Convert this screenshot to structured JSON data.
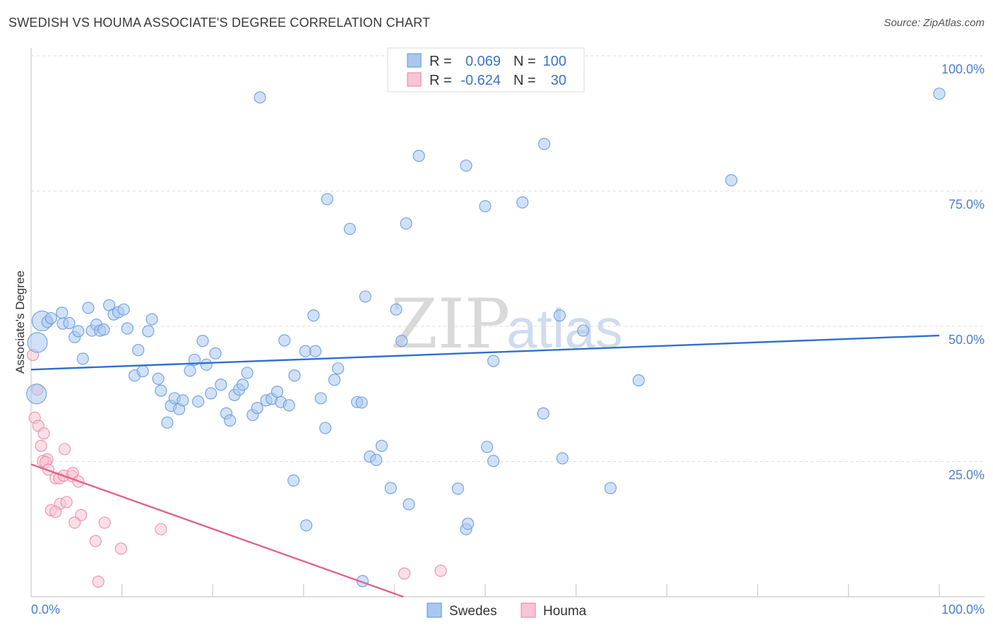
{
  "header": {
    "title": "SWEDISH VS HOUMA ASSOCIATE'S DEGREE CORRELATION CHART",
    "source": "Source: ZipAtlas.com"
  },
  "watermark": {
    "zip": "ZIP",
    "atlas": "atlas"
  },
  "legend": {
    "rows": [
      {
        "r_label": "R =",
        "r_value": "0.069",
        "n_label": "N =",
        "n_value": "100",
        "color": "#a9c8f0"
      },
      {
        "r_label": "R =",
        "r_value": "-0.624",
        "n_label": "N =",
        "n_value": "30",
        "color": "#f6bccd"
      }
    ]
  },
  "bottom_legend": {
    "swedes": "Swedes",
    "houma": "Houma"
  },
  "colors": {
    "swedes_fill": "#a9c8f0",
    "swedes_stroke": "#6f9ee0",
    "swedes_line": "#2f6fd0",
    "houma_fill": "#f8c5d4",
    "houma_stroke": "#ec8fad",
    "houma_line": "#e0628f",
    "grid": "#dddddd",
    "axis_text": "#4a7fd0"
  },
  "chart_data": {
    "type": "scatter",
    "title": "SWEDISH VS HOUMA ASSOCIATE'S DEGREE CORRELATION CHART",
    "xlabel": "",
    "ylabel": "Associate's Degree",
    "xlim": [
      0,
      100
    ],
    "ylim": [
      0,
      100
    ],
    "x_tick_labels": [
      "0.0%",
      "100.0%"
    ],
    "y_ticks": [
      25,
      50,
      75,
      100
    ],
    "y_tick_labels": [
      "25.0%",
      "50.0%",
      "75.0%",
      "100.0%"
    ],
    "series": [
      {
        "name": "Swedes",
        "r": 0.069,
        "n": 100,
        "trend": {
          "x": [
            0,
            100
          ],
          "y": [
            42.0,
            48.3
          ]
        },
        "points": [
          {
            "x": 0.7,
            "y": 47.0,
            "big": 1
          },
          {
            "x": 0.6,
            "y": 37.5,
            "big": 1
          },
          {
            "x": 1.2,
            "y": 51.0,
            "big": 1
          },
          {
            "x": 1.8,
            "y": 50.8
          },
          {
            "x": 2.2,
            "y": 51.5
          },
          {
            "x": 3.4,
            "y": 52.5
          },
          {
            "x": 3.5,
            "y": 50.5
          },
          {
            "x": 4.2,
            "y": 50.6
          },
          {
            "x": 4.8,
            "y": 48.0
          },
          {
            "x": 5.2,
            "y": 49.1
          },
          {
            "x": 5.7,
            "y": 44.0
          },
          {
            "x": 6.3,
            "y": 53.4
          },
          {
            "x": 6.7,
            "y": 49.2
          },
          {
            "x": 7.2,
            "y": 50.3
          },
          {
            "x": 7.6,
            "y": 49.2
          },
          {
            "x": 8.0,
            "y": 49.4
          },
          {
            "x": 8.6,
            "y": 53.9
          },
          {
            "x": 9.1,
            "y": 52.2
          },
          {
            "x": 9.6,
            "y": 52.6
          },
          {
            "x": 10.2,
            "y": 53.1
          },
          {
            "x": 10.6,
            "y": 49.6
          },
          {
            "x": 11.4,
            "y": 40.9
          },
          {
            "x": 11.8,
            "y": 45.6
          },
          {
            "x": 12.3,
            "y": 41.7
          },
          {
            "x": 12.9,
            "y": 49.1
          },
          {
            "x": 13.3,
            "y": 51.3
          },
          {
            "x": 14.0,
            "y": 40.3
          },
          {
            "x": 14.3,
            "y": 38.1
          },
          {
            "x": 15.0,
            "y": 32.2
          },
          {
            "x": 15.4,
            "y": 35.3
          },
          {
            "x": 15.8,
            "y": 36.7
          },
          {
            "x": 16.3,
            "y": 34.7
          },
          {
            "x": 16.7,
            "y": 36.3
          },
          {
            "x": 17.5,
            "y": 41.8
          },
          {
            "x": 18.0,
            "y": 43.8
          },
          {
            "x": 18.4,
            "y": 36.1
          },
          {
            "x": 18.9,
            "y": 47.3
          },
          {
            "x": 19.3,
            "y": 42.9
          },
          {
            "x": 19.8,
            "y": 37.6
          },
          {
            "x": 20.3,
            "y": 45.0
          },
          {
            "x": 20.9,
            "y": 39.2
          },
          {
            "x": 21.5,
            "y": 33.9
          },
          {
            "x": 21.9,
            "y": 32.6
          },
          {
            "x": 22.4,
            "y": 37.3
          },
          {
            "x": 22.9,
            "y": 38.3
          },
          {
            "x": 23.3,
            "y": 39.2
          },
          {
            "x": 23.8,
            "y": 41.4
          },
          {
            "x": 24.4,
            "y": 33.6
          },
          {
            "x": 24.9,
            "y": 34.9
          },
          {
            "x": 25.2,
            "y": 92.3
          },
          {
            "x": 25.9,
            "y": 36.3
          },
          {
            "x": 26.5,
            "y": 36.6
          },
          {
            "x": 27.1,
            "y": 37.9
          },
          {
            "x": 27.5,
            "y": 36.0
          },
          {
            "x": 27.9,
            "y": 47.4
          },
          {
            "x": 28.4,
            "y": 35.4
          },
          {
            "x": 29.0,
            "y": 40.9
          },
          {
            "x": 30.2,
            "y": 45.4
          },
          {
            "x": 31.1,
            "y": 52.0
          },
          {
            "x": 31.3,
            "y": 45.4
          },
          {
            "x": 31.9,
            "y": 36.7
          },
          {
            "x": 32.4,
            "y": 31.2
          },
          {
            "x": 32.6,
            "y": 73.5
          },
          {
            "x": 33.4,
            "y": 40.1
          },
          {
            "x": 33.8,
            "y": 42.2
          },
          {
            "x": 35.1,
            "y": 68.0
          },
          {
            "x": 35.9,
            "y": 36.0
          },
          {
            "x": 36.4,
            "y": 35.9
          },
          {
            "x": 36.8,
            "y": 55.5
          },
          {
            "x": 37.3,
            "y": 25.9
          },
          {
            "x": 38.6,
            "y": 27.9
          },
          {
            "x": 40.2,
            "y": 53.1
          },
          {
            "x": 40.8,
            "y": 47.3
          },
          {
            "x": 41.3,
            "y": 69.0
          },
          {
            "x": 42.7,
            "y": 81.5
          },
          {
            "x": 47.9,
            "y": 79.7
          },
          {
            "x": 50.0,
            "y": 72.2
          },
          {
            "x": 50.9,
            "y": 43.6
          },
          {
            "x": 54.1,
            "y": 72.9
          },
          {
            "x": 56.5,
            "y": 83.7
          },
          {
            "x": 58.2,
            "y": 52.0
          },
          {
            "x": 60.8,
            "y": 49.2
          },
          {
            "x": 66.9,
            "y": 40.0
          },
          {
            "x": 77.1,
            "y": 77.0
          },
          {
            "x": 100.0,
            "y": 93.0
          },
          {
            "x": 28.9,
            "y": 21.5
          },
          {
            "x": 30.3,
            "y": 13.2
          },
          {
            "x": 36.5,
            "y": 2.9
          },
          {
            "x": 38.0,
            "y": 25.3
          },
          {
            "x": 39.6,
            "y": 20.1
          },
          {
            "x": 41.6,
            "y": 17.1
          },
          {
            "x": 47.0,
            "y": 20.0
          },
          {
            "x": 47.9,
            "y": 12.5
          },
          {
            "x": 48.1,
            "y": 13.5
          },
          {
            "x": 50.2,
            "y": 27.7
          },
          {
            "x": 50.9,
            "y": 25.1
          },
          {
            "x": 56.4,
            "y": 33.9
          },
          {
            "x": 58.5,
            "y": 25.6
          },
          {
            "x": 63.8,
            "y": 20.1
          }
        ]
      },
      {
        "name": "Houma",
        "r": -0.624,
        "n": 30,
        "trend": {
          "x": [
            0,
            41.0
          ],
          "y": [
            24.5,
            0
          ]
        },
        "points": [
          {
            "x": 0.2,
            "y": 44.7
          },
          {
            "x": 0.7,
            "y": 38.3
          },
          {
            "x": 0.4,
            "y": 33.1
          },
          {
            "x": 0.8,
            "y": 31.6
          },
          {
            "x": 1.4,
            "y": 30.2
          },
          {
            "x": 1.1,
            "y": 27.9
          },
          {
            "x": 1.8,
            "y": 25.4
          },
          {
            "x": 1.3,
            "y": 25.1
          },
          {
            "x": 1.6,
            "y": 24.9
          },
          {
            "x": 1.9,
            "y": 23.5
          },
          {
            "x": 3.7,
            "y": 27.3
          },
          {
            "x": 2.7,
            "y": 21.9
          },
          {
            "x": 3.1,
            "y": 21.9
          },
          {
            "x": 3.6,
            "y": 22.4
          },
          {
            "x": 4.5,
            "y": 22.3
          },
          {
            "x": 4.6,
            "y": 22.9
          },
          {
            "x": 5.2,
            "y": 21.3
          },
          {
            "x": 2.2,
            "y": 16.0
          },
          {
            "x": 3.2,
            "y": 17.2
          },
          {
            "x": 3.9,
            "y": 17.5
          },
          {
            "x": 2.7,
            "y": 15.7
          },
          {
            "x": 5.5,
            "y": 15.1
          },
          {
            "x": 4.8,
            "y": 13.7
          },
          {
            "x": 8.1,
            "y": 13.7
          },
          {
            "x": 14.3,
            "y": 12.5
          },
          {
            "x": 7.1,
            "y": 10.3
          },
          {
            "x": 9.9,
            "y": 8.9
          },
          {
            "x": 7.4,
            "y": 2.8
          },
          {
            "x": 41.1,
            "y": 4.3
          },
          {
            "x": 45.1,
            "y": 4.8
          }
        ]
      }
    ]
  }
}
